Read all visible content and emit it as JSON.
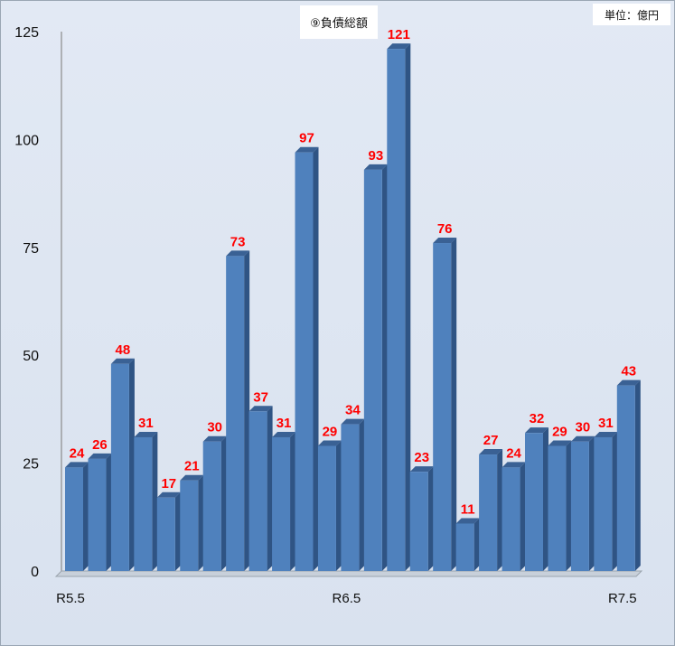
{
  "chart_data": {
    "type": "bar",
    "title": "⑨負債総額",
    "unit_label": "単位：億円",
    "xlabel": "",
    "ylabel": "",
    "ylim": [
      0,
      125
    ],
    "yticks": [
      "0",
      "25",
      "50",
      "75",
      "100",
      "125"
    ],
    "x_tick_labels": [
      {
        "index": 0,
        "label": "R5.5"
      },
      {
        "index": 12,
        "label": "R6.5"
      },
      {
        "index": 24,
        "label": "R7.5"
      }
    ],
    "values": [
      24,
      26,
      48,
      31,
      17,
      21,
      30,
      73,
      37,
      31,
      97,
      29,
      34,
      93,
      121,
      23,
      76,
      11,
      27,
      24,
      32,
      29,
      30,
      31,
      43
    ],
    "value_labels": [
      "24",
      "26",
      "48",
      "31",
      "17",
      "21",
      "30",
      "73",
      "37",
      "31",
      "97",
      "29",
      "34",
      "93",
      "121",
      "23",
      "76",
      "11",
      "27",
      "24",
      "32",
      "29",
      "30",
      "31",
      "43"
    ],
    "colors": {
      "bar_front": "#4f81bd",
      "bar_side": "#2f5484",
      "bar_top": "#3a6194",
      "label": "#ff0000"
    },
    "grid": false,
    "legend": "none"
  }
}
